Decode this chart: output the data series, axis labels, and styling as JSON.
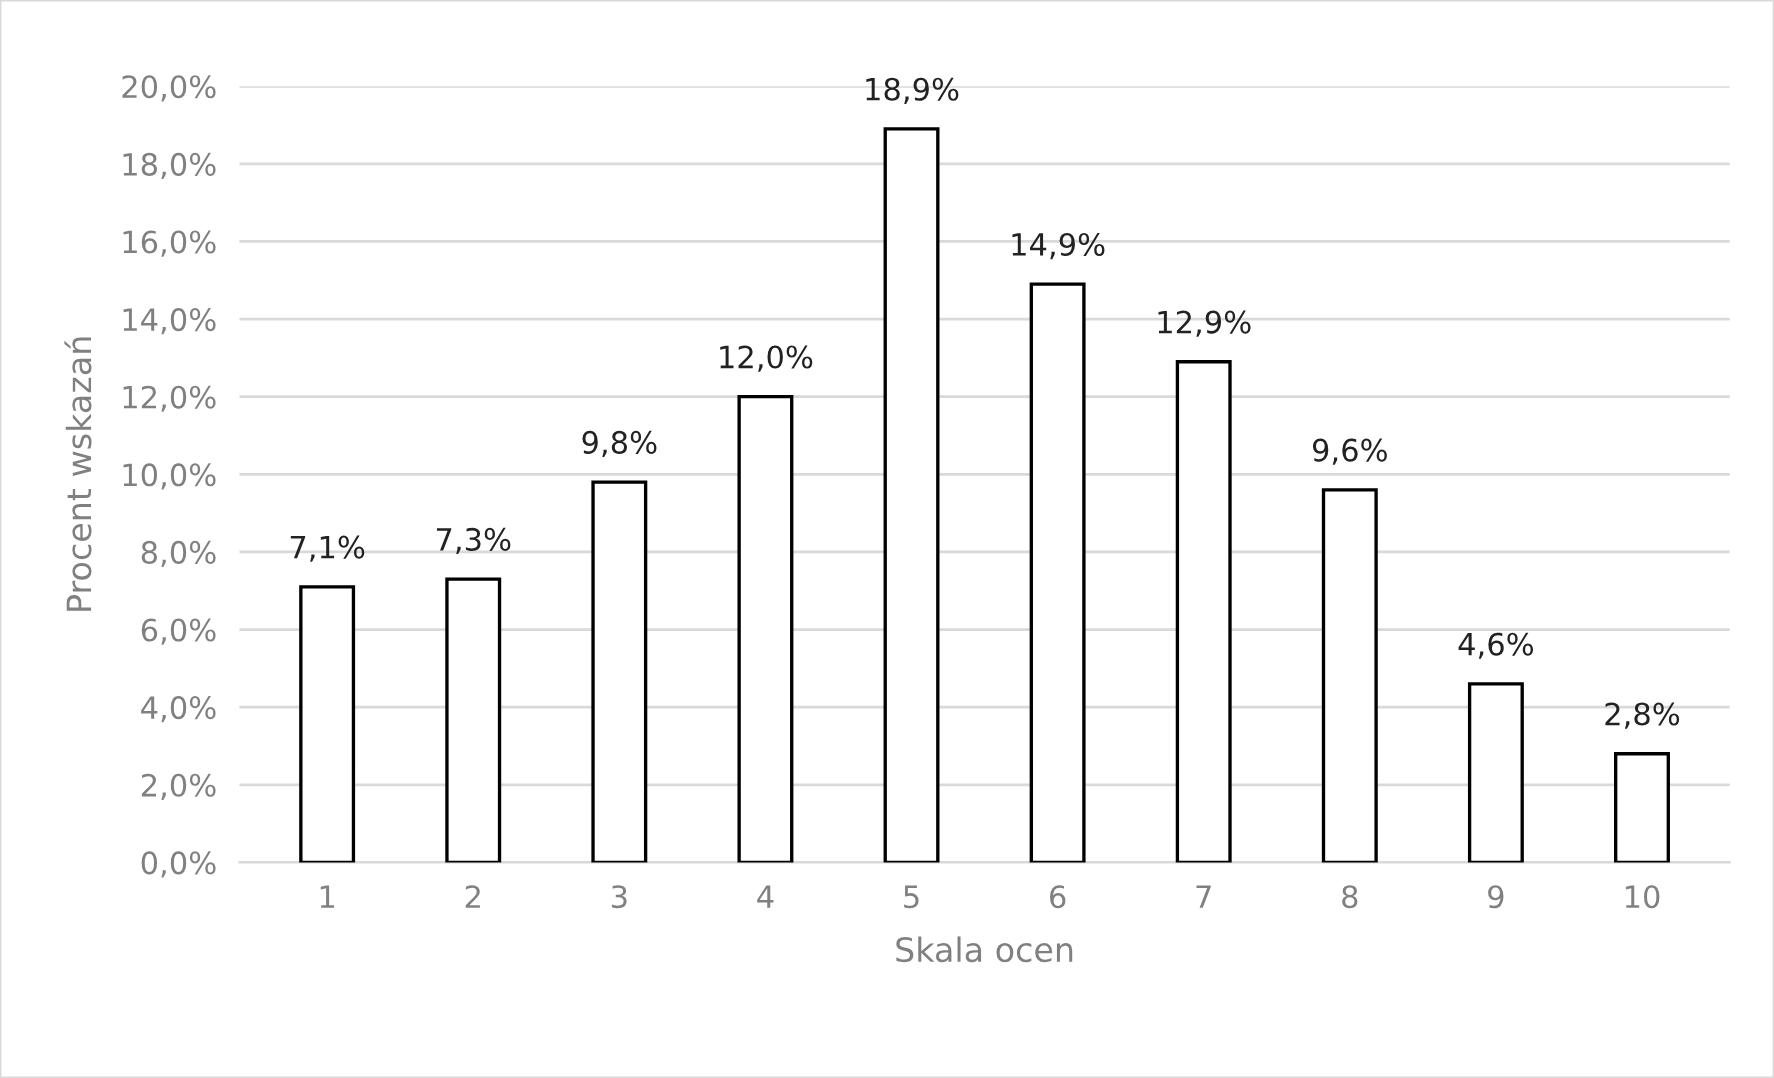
{
  "chart_data": {
    "type": "bar",
    "xlabel": "Skala ocen",
    "ylabel": "Procent wskazań",
    "categories": [
      "1",
      "2",
      "3",
      "4",
      "5",
      "6",
      "7",
      "8",
      "9",
      "10"
    ],
    "values": [
      7.1,
      7.3,
      9.8,
      12.0,
      18.9,
      14.9,
      12.9,
      9.6,
      4.6,
      2.8
    ],
    "value_labels": [
      "7,1%",
      "7,3%",
      "9,8%",
      "12,0%",
      "18,9%",
      "14,9%",
      "12,9%",
      "9,6%",
      "4,6%",
      "2,8%"
    ],
    "color": "#ffffff",
    "ylim": [
      0,
      20
    ],
    "yticks": [
      {
        "value": 0,
        "label": "0,0%"
      },
      {
        "value": 2,
        "label": "2,0%"
      },
      {
        "value": 4,
        "label": "4,0%"
      },
      {
        "value": 6,
        "label": "6,0%"
      },
      {
        "value": 8,
        "label": "8,0%"
      },
      {
        "value": 10,
        "label": "10,0%"
      },
      {
        "value": 12,
        "label": "12,0%"
      },
      {
        "value": 14,
        "label": "14,0%"
      },
      {
        "value": 16,
        "label": "16,0%"
      },
      {
        "value": 18,
        "label": "18,0%"
      },
      {
        "value": 20,
        "label": "20,0%"
      }
    ],
    "grid": "y"
  }
}
